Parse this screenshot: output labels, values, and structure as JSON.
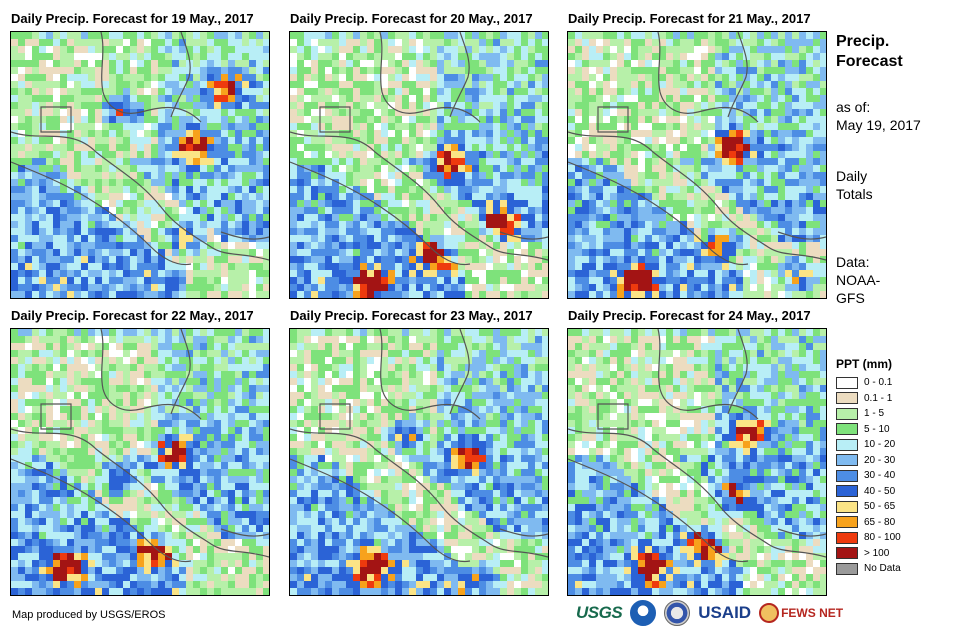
{
  "panels": [
    {
      "title": "Daily Precip. Forecast for 19 May., 2017",
      "seed": 11,
      "heavy": [
        [
          0.82,
          0.2
        ],
        [
          0.7,
          0.42
        ],
        [
          0.42,
          0.28
        ],
        [
          0.65,
          0.75
        ]
      ]
    },
    {
      "title": "Daily Precip. Forecast for 20 May., 2017",
      "seed": 23,
      "heavy": [
        [
          0.6,
          0.48
        ],
        [
          0.8,
          0.7
        ],
        [
          0.55,
          0.82
        ],
        [
          0.3,
          0.93
        ]
      ]
    },
    {
      "title": "Daily Precip. Forecast for 21 May., 2017",
      "seed": 37,
      "heavy": [
        [
          0.63,
          0.42
        ],
        [
          0.58,
          0.78
        ],
        [
          0.88,
          0.9
        ],
        [
          0.25,
          0.92
        ]
      ]
    },
    {
      "title": "Daily Precip. Forecast for 22 May., 2017",
      "seed": 41,
      "heavy": [
        [
          0.4,
          0.55
        ],
        [
          0.62,
          0.45
        ],
        [
          0.55,
          0.82
        ],
        [
          0.2,
          0.88
        ]
      ]
    },
    {
      "title": "Daily Precip. Forecast for 23 May., 2017",
      "seed": 53,
      "heavy": [
        [
          0.67,
          0.47
        ],
        [
          0.45,
          0.38
        ],
        [
          0.3,
          0.88
        ],
        [
          0.72,
          0.93
        ]
      ]
    },
    {
      "title": "Daily Precip. Forecast for 24 May., 2017",
      "seed": 67,
      "heavy": [
        [
          0.68,
          0.37
        ],
        [
          0.52,
          0.8
        ],
        [
          0.62,
          0.62
        ],
        [
          0.3,
          0.88
        ]
      ]
    }
  ],
  "side": {
    "title_line1": "Precip.",
    "title_line2": "Forecast",
    "as_of_label": "as of:",
    "as_of_date": "May 19, 2017",
    "totals_line1": "Daily",
    "totals_line2": "Totals",
    "data_line1": "Data:",
    "data_line2": "NOAA-",
    "data_line3": "GFS"
  },
  "legend": {
    "title": "PPT (mm)",
    "items": [
      {
        "label": "0 - 0.1",
        "color": "#ffffff"
      },
      {
        "label": "0.1 - 1",
        "color": "#ecdcc0"
      },
      {
        "label": "1 - 5",
        "color": "#b7f0a9"
      },
      {
        "label": "5 - 10",
        "color": "#7ee27b"
      },
      {
        "label": "10 - 20",
        "color": "#b8eef6"
      },
      {
        "label": "20 - 30",
        "color": "#7fbaf0"
      },
      {
        "label": "30 - 40",
        "color": "#4d8de4"
      },
      {
        "label": "40 - 50",
        "color": "#2b63d6"
      },
      {
        "label": "50 - 65",
        "color": "#fbe486"
      },
      {
        "label": "65 - 80",
        "color": "#f7a21c"
      },
      {
        "label": "80 - 100",
        "color": "#ee3a0e"
      },
      {
        "label": "> 100",
        "color": "#a31414"
      },
      {
        "label": "No Data",
        "color": "#9a9a9a"
      }
    ]
  },
  "credit": "Map produced by USGS/EROS",
  "logos": {
    "usgs": "USGS",
    "usaid": "USAID",
    "fews": "FEWS NET"
  }
}
